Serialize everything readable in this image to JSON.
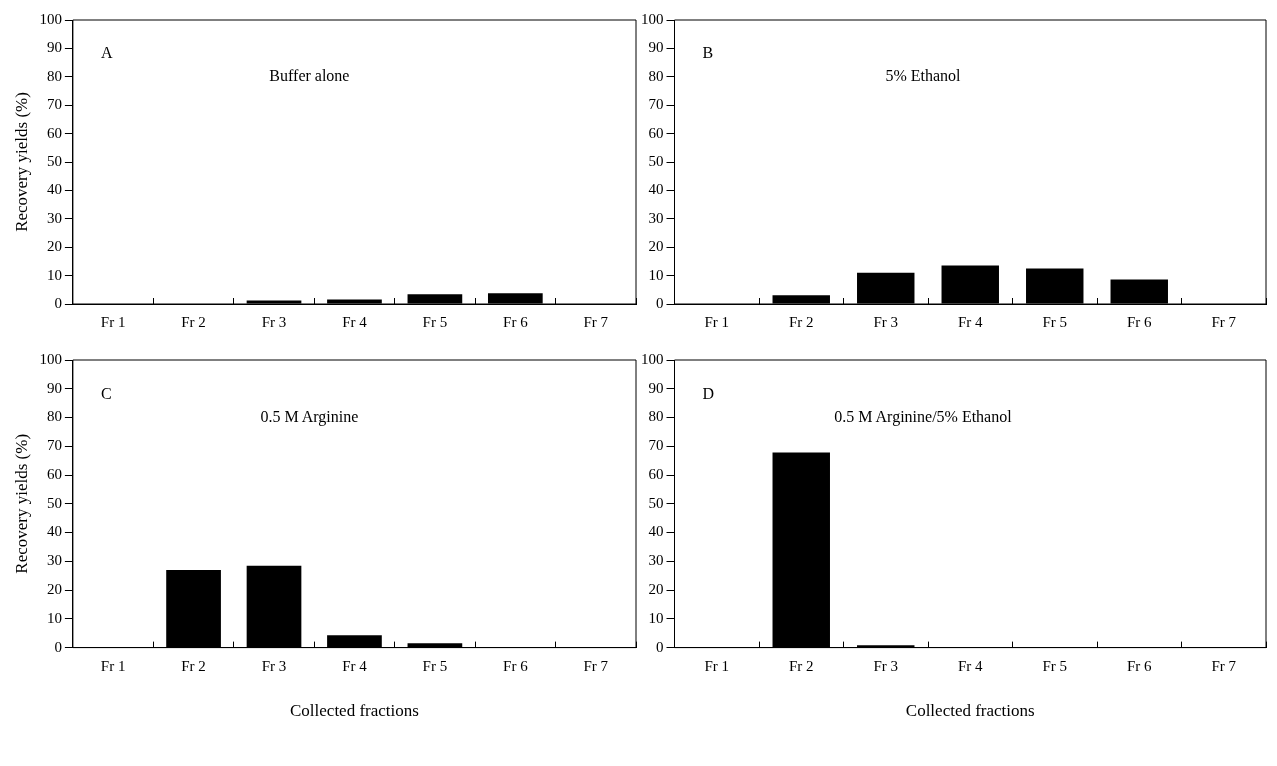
{
  "chart_data": [
    {
      "type": "bar",
      "title": "Buffer alone",
      "annotations": [
        "A"
      ],
      "ylabel": "Recovery yields (%)",
      "categories": [
        "Fr 1",
        "Fr 2",
        "Fr 3",
        "Fr 4",
        "Fr 5",
        "Fr 6",
        "Fr 7"
      ],
      "values": [
        0,
        0,
        1.2,
        1.6,
        3.4,
        3.8,
        0
      ],
      "color": "#000000",
      "ylim": [
        0,
        100
      ],
      "yticks": [
        0,
        10,
        20,
        30,
        40,
        50,
        60,
        70,
        80,
        90,
        100
      ]
    },
    {
      "type": "bar",
      "title": "5% Ethanol",
      "annotations": [
        "B"
      ],
      "categories": [
        "Fr 1",
        "Fr 2",
        "Fr 3",
        "Fr 4",
        "Fr 5",
        "Fr 6",
        "Fr 7"
      ],
      "values": [
        0,
        3.1,
        11,
        13.6,
        12.5,
        8.6,
        0
      ],
      "color": "#000000",
      "ylim": [
        0,
        100
      ],
      "yticks": [
        0,
        10,
        20,
        30,
        40,
        50,
        60,
        70,
        80,
        90,
        100
      ]
    },
    {
      "type": "bar",
      "title": "0.5 M Arginine",
      "annotations": [
        "C"
      ],
      "ylabel": "Recovery yields (%)",
      "xlabel": "Collected fractions",
      "categories": [
        "Fr 1",
        "Fr 2",
        "Fr 3",
        "Fr 4",
        "Fr 5",
        "Fr 6",
        "Fr 7"
      ],
      "values": [
        0,
        27,
        28.5,
        4.3,
        1.5,
        0,
        0
      ],
      "color": "#000000",
      "ylim": [
        0,
        100
      ],
      "yticks": [
        0,
        10,
        20,
        30,
        40,
        50,
        60,
        70,
        80,
        90,
        100
      ]
    },
    {
      "type": "bar",
      "title": "0.5 M Arginine/5% Ethanol",
      "annotations": [
        "D"
      ],
      "xlabel": "Collected fractions",
      "categories": [
        "Fr 1",
        "Fr 2",
        "Fr 3",
        "Fr 4",
        "Fr 5",
        "Fr 6",
        "Fr 7"
      ],
      "values": [
        0,
        67.8,
        0.8,
        0,
        0,
        0,
        0
      ],
      "color": "#000000",
      "ylim": [
        0,
        100
      ],
      "yticks": [
        0,
        10,
        20,
        30,
        40,
        50,
        60,
        70,
        80,
        90,
        100
      ]
    }
  ]
}
